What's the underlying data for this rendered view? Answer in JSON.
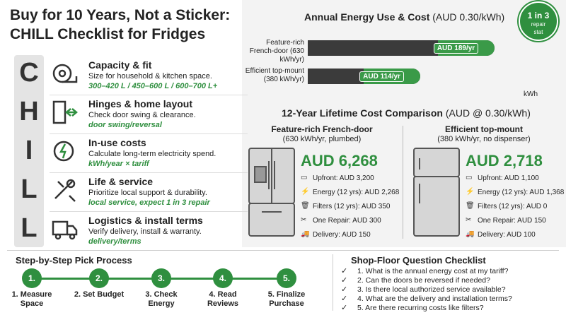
{
  "header": {
    "title_line1": "Buy for 10 Years, Not a Sticker:",
    "title_line2": "CHILL Checklist for Fridges"
  },
  "badge": {
    "line1": "1 in 3",
    "line2": "repair",
    "line3": "stat"
  },
  "checklist": [
    {
      "letter": "C",
      "title": "Capacity & fit",
      "desc": "Size for household & kitchen space.",
      "note": "300–420 L / 450–600 L / 600–700 L+"
    },
    {
      "letter": "H",
      "title": "Hinges & home layout",
      "desc": "Check door swing & clearance.",
      "note": "door swing/reversal"
    },
    {
      "letter": "I",
      "title": "In-use costs",
      "desc": "Calculate long-term electricity spend.",
      "note": "kWh/year × tariff"
    },
    {
      "letter": "L",
      "title": "Life & service",
      "desc": "Prioritize local support & durability.",
      "note": "local service, expect 1 in 3 repair"
    },
    {
      "letter": "L",
      "title": "Logistics & install terms",
      "desc": "Verify delivery, install & warranty.",
      "note": "delivery/terms"
    }
  ],
  "chart_data": {
    "type": "bar",
    "orientation": "horizontal",
    "title": "Annual Energy Use & Cost",
    "subtitle": "(AUD 0.30/kWh)",
    "categories": [
      "Feature-rich French-door (630 kWh/yr)",
      "Efficient top-mount (380 kWh/yr)"
    ],
    "values": [
      630,
      380
    ],
    "annotations": [
      "AUD 189/yr",
      "AUD 114/yr"
    ],
    "xlabel": "kWh",
    "xlim": [
      0,
      800
    ],
    "color": "#3b3b3b",
    "accent_color": "#3a9a48"
  },
  "comparison": {
    "title": "12-Year Lifetime Cost Comparison",
    "subtitle": "(AUD @ 0.30/kWh)",
    "columns": [
      {
        "name": "Feature-rich French-door",
        "spec": "(630 kWh/yr, plumbed)",
        "total": "AUD 6,268",
        "items": [
          "Upfront: AUD 3,200",
          "Energy (12 yrs): AUD 2,268",
          "Filters (12 yrs): AUD 350",
          "One Repair: AUD 300",
          "Delivery: AUD 150"
        ]
      },
      {
        "name": "Efficient top-mount",
        "spec": "(380 kWh/yr, no dispenser)",
        "total": "AUD 2,718",
        "items": [
          "Upfront: AUD 1,100",
          "Energy (12 yrs): AUD 1,368",
          "Filters (12 yrs): AUD 0",
          "One Repair: AUD 150",
          "Delivery: AUD 100"
        ]
      }
    ]
  },
  "steps": {
    "title": "Step-by-Step Pick Process",
    "items": [
      {
        "num": "1.",
        "label": "1. Measure Space"
      },
      {
        "num": "2.",
        "label": "2. Set Budget"
      },
      {
        "num": "3.",
        "label": "3. Check Energy"
      },
      {
        "num": "4.",
        "label": "4. Read Reviews"
      },
      {
        "num": "5.",
        "label": "5. Finalize Purchase"
      }
    ]
  },
  "questions": {
    "title": "Shop-Floor Question Checklist",
    "items": [
      "1. What is the annual energy cost at my tariff?",
      "2. Can the doors be reversed if needed?",
      "3. Is there local authorized service available?",
      "4. What are the delivery and installation terms?",
      "5. Are there recurring costs like filters?"
    ]
  }
}
